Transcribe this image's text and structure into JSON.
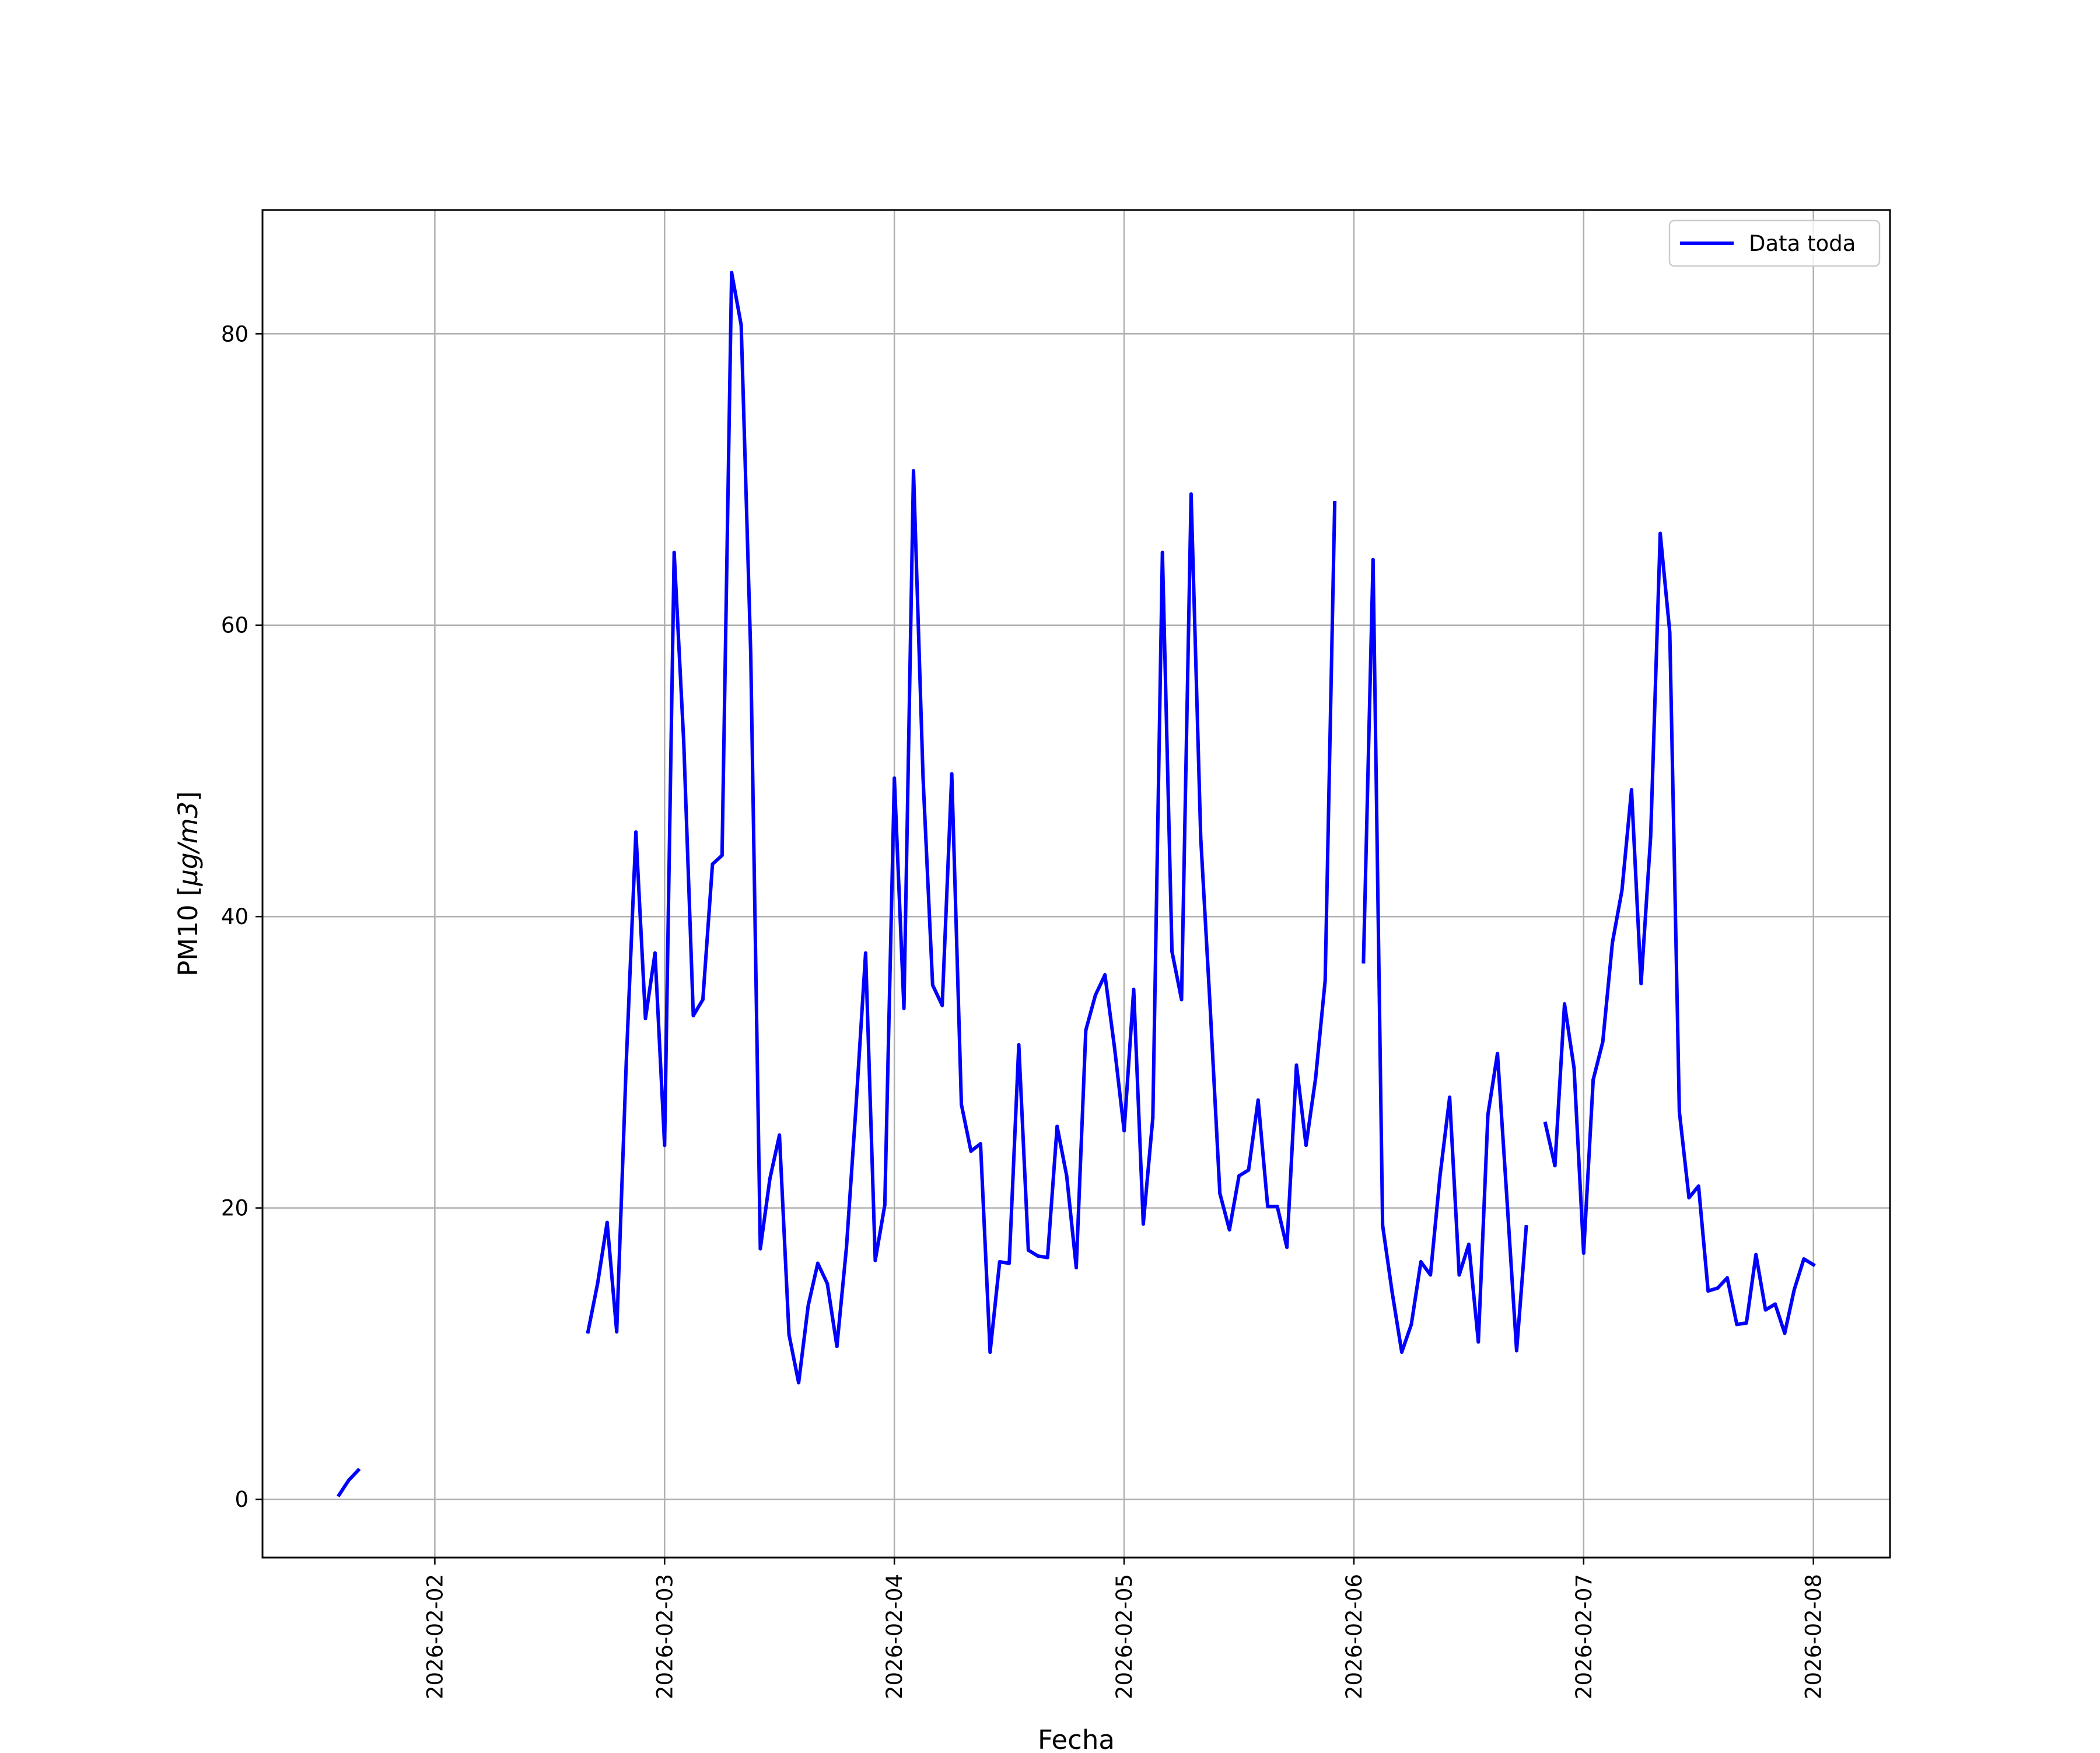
{
  "chart_data": {
    "type": "line",
    "title": "",
    "xlabel": "Fecha",
    "ylabel_text": "PM10 [",
    "ylabel_unit": "μg/m3",
    "ylabel_close": "]",
    "ylim": [
      -4,
      88.5
    ],
    "xlim": [
      "2026-02-01T06:00",
      "2026-02-08T08:00"
    ],
    "grid": true,
    "legend_position": "top-right",
    "line_color": "#0000ff",
    "x_tick_labels": [
      "2026-02-02",
      "2026-02-03",
      "2026-02-04",
      "2026-02-05",
      "2026-02-06",
      "2026-02-07",
      "2026-02-08"
    ],
    "y_tick_labels": [
      "0",
      "20",
      "40",
      "60",
      "80"
    ],
    "y_tick_values": [
      0,
      20,
      40,
      60,
      80
    ],
    "series": [
      {
        "name": "Data toda",
        "segments": [
          [
            [
              "2026-02-01T14:00",
              0.3
            ],
            [
              "2026-02-01T15:00",
              1.3
            ],
            [
              "2026-02-01T16:00",
              2.0
            ]
          ],
          [
            [
              "2026-02-02T16:00",
              11.5
            ],
            [
              "2026-02-02T17:00",
              14.8
            ],
            [
              "2026-02-02T18:00",
              19.0
            ],
            [
              "2026-02-02T19:00",
              11.5
            ],
            [
              "2026-02-02T20:00",
              30.0
            ],
            [
              "2026-02-02T21:00",
              45.8
            ],
            [
              "2026-02-02T22:00",
              33.0
            ],
            [
              "2026-02-02T23:00",
              37.5
            ],
            [
              "2026-02-03T00:00",
              24.3
            ],
            [
              "2026-02-03T01:00",
              65.0
            ],
            [
              "2026-02-03T02:00",
              52.0
            ],
            [
              "2026-02-03T03:00",
              33.2
            ],
            [
              "2026-02-03T04:00",
              34.3
            ],
            [
              "2026-02-03T05:00",
              43.6
            ],
            [
              "2026-02-03T06:00",
              44.2
            ],
            [
              "2026-02-03T07:00",
              84.2
            ],
            [
              "2026-02-03T08:00",
              80.6
            ],
            [
              "2026-02-03T09:00",
              58.0
            ],
            [
              "2026-02-03T10:00",
              17.2
            ],
            [
              "2026-02-03T11:00",
              22.0
            ],
            [
              "2026-02-03T12:00",
              25.0
            ],
            [
              "2026-02-03T13:00",
              11.3
            ],
            [
              "2026-02-03T14:00",
              8.0
            ],
            [
              "2026-02-03T15:00",
              13.3
            ],
            [
              "2026-02-03T16:00",
              16.2
            ],
            [
              "2026-02-03T17:00",
              14.8
            ],
            [
              "2026-02-03T18:00",
              10.5
            ],
            [
              "2026-02-03T19:00",
              17.3
            ],
            [
              "2026-02-03T20:00",
              27.0
            ],
            [
              "2026-02-03T21:00",
              37.5
            ],
            [
              "2026-02-03T22:00",
              16.4
            ],
            [
              "2026-02-03T23:00",
              20.2
            ],
            [
              "2026-02-04T00:00",
              49.5
            ],
            [
              "2026-02-04T01:00",
              33.7
            ],
            [
              "2026-02-04T02:00",
              70.6
            ],
            [
              "2026-02-04T03:00",
              49.5
            ],
            [
              "2026-02-04T04:00",
              35.3
            ],
            [
              "2026-02-04T05:00",
              33.9
            ],
            [
              "2026-02-04T06:00",
              49.8
            ],
            [
              "2026-02-04T07:00",
              27.1
            ],
            [
              "2026-02-04T08:00",
              23.9
            ],
            [
              "2026-02-04T09:00",
              24.4
            ],
            [
              "2026-02-04T10:00",
              10.1
            ],
            [
              "2026-02-04T11:00",
              16.3
            ],
            [
              "2026-02-04T12:00",
              16.2
            ],
            [
              "2026-02-04T13:00",
              31.2
            ],
            [
              "2026-02-04T14:00",
              17.1
            ],
            [
              "2026-02-04T15:00",
              16.7
            ],
            [
              "2026-02-04T16:00",
              16.6
            ],
            [
              "2026-02-04T17:00",
              25.6
            ],
            [
              "2026-02-04T18:00",
              22.2
            ],
            [
              "2026-02-04T19:00",
              15.9
            ],
            [
              "2026-02-04T20:00",
              32.2
            ],
            [
              "2026-02-04T21:00",
              34.6
            ],
            [
              "2026-02-04T22:00",
              36.0
            ],
            [
              "2026-02-04T23:00",
              31.0
            ],
            [
              "2026-02-05T00:00",
              25.3
            ],
            [
              "2026-02-05T01:00",
              35.0
            ],
            [
              "2026-02-05T02:00",
              18.9
            ],
            [
              "2026-02-05T03:00",
              26.2
            ],
            [
              "2026-02-05T04:00",
              65.0
            ],
            [
              "2026-02-05T05:00",
              37.6
            ],
            [
              "2026-02-05T06:00",
              34.3
            ],
            [
              "2026-02-05T07:00",
              69.0
            ],
            [
              "2026-02-05T08:00",
              45.4
            ],
            [
              "2026-02-05T09:00",
              33.6
            ],
            [
              "2026-02-05T10:00",
              21.0
            ],
            [
              "2026-02-05T11:00",
              18.5
            ],
            [
              "2026-02-05T12:00",
              22.2
            ],
            [
              "2026-02-05T13:00",
              22.6
            ],
            [
              "2026-02-05T14:00",
              27.4
            ],
            [
              "2026-02-05T15:00",
              20.1
            ],
            [
              "2026-02-05T16:00",
              20.1
            ],
            [
              "2026-02-05T17:00",
              17.3
            ],
            [
              "2026-02-05T18:00",
              29.8
            ],
            [
              "2026-02-05T19:00",
              24.3
            ],
            [
              "2026-02-05T20:00",
              28.9
            ],
            [
              "2026-02-05T21:00",
              35.6
            ],
            [
              "2026-02-05T22:00",
              68.4
            ]
          ],
          [
            [
              "2026-02-06T01:00",
              36.9
            ],
            [
              "2026-02-06T02:00",
              64.5
            ],
            [
              "2026-02-06T03:00",
              18.8
            ],
            [
              "2026-02-06T04:00",
              14.2
            ],
            [
              "2026-02-06T05:00",
              10.1
            ],
            [
              "2026-02-06T06:00",
              12.0
            ],
            [
              "2026-02-06T07:00",
              16.3
            ],
            [
              "2026-02-06T08:00",
              15.4
            ],
            [
              "2026-02-06T09:00",
              22.2
            ],
            [
              "2026-02-06T10:00",
              27.6
            ],
            [
              "2026-02-06T11:00",
              15.4
            ],
            [
              "2026-02-06T12:00",
              17.5
            ],
            [
              "2026-02-06T13:00",
              10.8
            ],
            [
              "2026-02-06T14:00",
              26.4
            ],
            [
              "2026-02-06T15:00",
              30.6
            ],
            [
              "2026-02-06T16:00",
              20.5
            ],
            [
              "2026-02-06T17:00",
              10.2
            ],
            [
              "2026-02-06T18:00",
              18.7
            ]
          ],
          [
            [
              "2026-02-06T20:00",
              25.8
            ],
            [
              "2026-02-06T21:00",
              22.9
            ],
            [
              "2026-02-06T22:00",
              34.0
            ],
            [
              "2026-02-06T23:00",
              29.6
            ],
            [
              "2026-02-07T00:00",
              16.9
            ],
            [
              "2026-02-07T01:00",
              28.8
            ],
            [
              "2026-02-07T02:00",
              31.4
            ],
            [
              "2026-02-07T03:00",
              38.2
            ],
            [
              "2026-02-07T04:00",
              41.8
            ],
            [
              "2026-02-07T05:00",
              48.7
            ],
            [
              "2026-02-07T06:00",
              35.4
            ],
            [
              "2026-02-07T07:00",
              45.5
            ],
            [
              "2026-02-07T08:00",
              66.3
            ],
            [
              "2026-02-07T09:00",
              59.5
            ],
            [
              "2026-02-07T10:00",
              26.6
            ],
            [
              "2026-02-07T11:00",
              20.7
            ],
            [
              "2026-02-07T12:00",
              21.5
            ],
            [
              "2026-02-07T13:00",
              14.3
            ],
            [
              "2026-02-07T14:00",
              14.5
            ],
            [
              "2026-02-07T15:00",
              15.2
            ],
            [
              "2026-02-07T16:00",
              12.0
            ],
            [
              "2026-02-07T17:00",
              12.1
            ],
            [
              "2026-02-07T18:00",
              16.8
            ],
            [
              "2026-02-07T19:00",
              13.0
            ],
            [
              "2026-02-07T20:00",
              13.4
            ],
            [
              "2026-02-07T21:00",
              11.4
            ],
            [
              "2026-02-07T22:00",
              14.4
            ],
            [
              "2026-02-07T23:00",
              16.5
            ],
            [
              "2026-02-08T00:00",
              16.1
            ]
          ]
        ]
      }
    ]
  }
}
